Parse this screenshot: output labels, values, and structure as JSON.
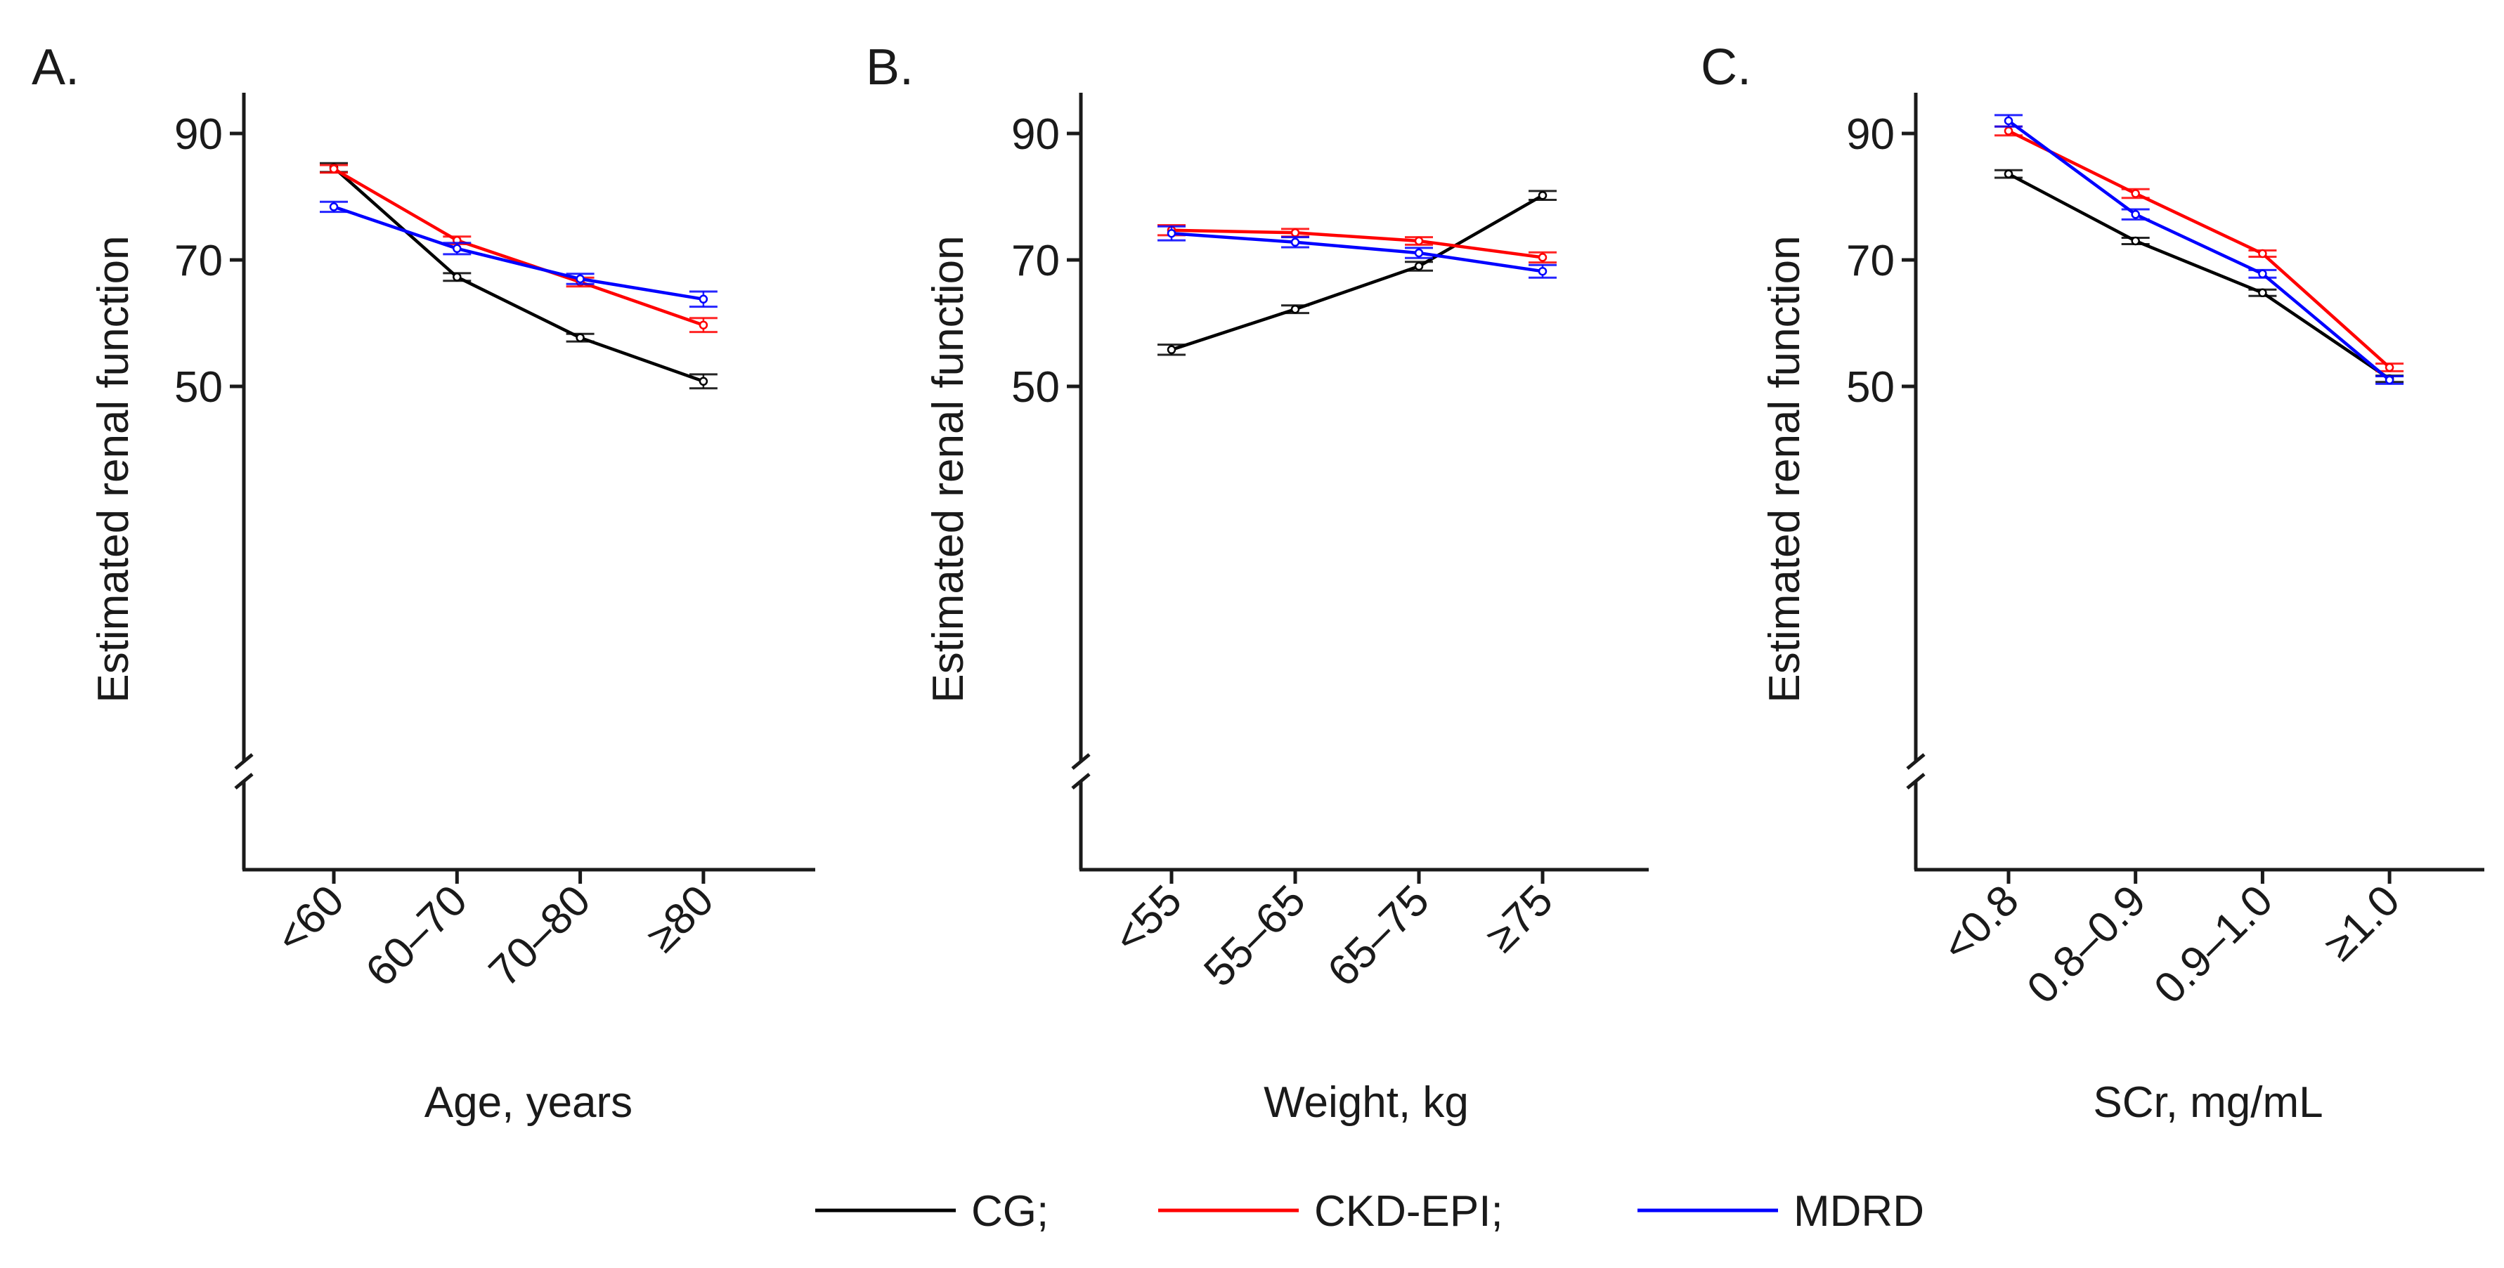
{
  "chart_data": [
    {
      "type": "line",
      "panel_label": "A.",
      "title": "",
      "xlabel": "Age, years",
      "ylabel": "Estimated renal function",
      "categories": [
        "<60",
        "60–70",
        "70–80",
        "≥80"
      ],
      "yticks": [
        50,
        70,
        90
      ],
      "ylim": [
        37,
        98
      ],
      "axis_break": true,
      "grid": false,
      "series": [
        {
          "name": "CG",
          "values": [
            84.6,
            67.3,
            57.7,
            50.8
          ],
          "errors": [
            0.7,
            0.6,
            0.6,
            1.1
          ]
        },
        {
          "name": "CKD-EPI",
          "values": [
            84.4,
            73.1,
            66.5,
            59.7
          ],
          "errors": [
            0.6,
            0.6,
            0.7,
            1.1
          ]
        },
        {
          "name": "MDRD",
          "values": [
            78.4,
            71.8,
            67.0,
            63.8
          ],
          "errors": [
            0.8,
            0.9,
            0.8,
            1.2
          ]
        }
      ]
    },
    {
      "type": "line",
      "panel_label": "B.",
      "title": "",
      "xlabel": "Weight, kg",
      "ylabel": "Estimated renal function",
      "categories": [
        "<55",
        "55–65",
        "65–75",
        "≥75"
      ],
      "yticks": [
        50,
        70,
        90
      ],
      "ylim": [
        37,
        98
      ],
      "axis_break": true,
      "grid": false,
      "series": [
        {
          "name": "CG",
          "values": [
            55.8,
            62.2,
            69.0,
            80.2
          ],
          "errors": [
            0.8,
            0.6,
            0.7,
            0.7
          ]
        },
        {
          "name": "CKD-EPI",
          "values": [
            74.7,
            74.3,
            73.0,
            70.4
          ],
          "errors": [
            0.8,
            0.6,
            0.6,
            0.8
          ]
        },
        {
          "name": "MDRD",
          "values": [
            74.2,
            72.8,
            71.1,
            68.2
          ],
          "errors": [
            1.1,
            0.8,
            0.8,
            1.0
          ]
        }
      ]
    },
    {
      "type": "line",
      "panel_label": "C.",
      "title": "",
      "xlabel": "SCr, mg/mL",
      "ylabel": "Estimated renal function",
      "categories": [
        "<0.8",
        "0.8–0.9",
        "0.9–1.0",
        "≥1.0"
      ],
      "yticks": [
        50,
        70,
        90
      ],
      "ylim": [
        37,
        98
      ],
      "axis_break": true,
      "grid": false,
      "series": [
        {
          "name": "CG",
          "values": [
            83.6,
            73.0,
            64.8,
            51.2
          ],
          "errors": [
            0.6,
            0.5,
            0.5,
            0.5
          ]
        },
        {
          "name": "CKD-EPI",
          "values": [
            90.4,
            80.5,
            71.0,
            53.0
          ],
          "errors": [
            0.7,
            0.7,
            0.5,
            0.6
          ]
        },
        {
          "name": "MDRD",
          "values": [
            92.0,
            77.2,
            67.8,
            51.0
          ],
          "errors": [
            0.9,
            0.8,
            0.6,
            0.6
          ]
        }
      ]
    }
  ],
  "legend": {
    "position": "bottom-center",
    "items": [
      {
        "label": "CG;",
        "color": "#000000"
      },
      {
        "label": "CKD-EPI;",
        "color": "#ff0000"
      },
      {
        "label": "MDRD",
        "color": "#0000ff"
      }
    ]
  },
  "colors": {
    "CG": "#000000",
    "CKD-EPI": "#ff0000",
    "MDRD": "#0000ff",
    "axis": "#1a1a1a"
  }
}
